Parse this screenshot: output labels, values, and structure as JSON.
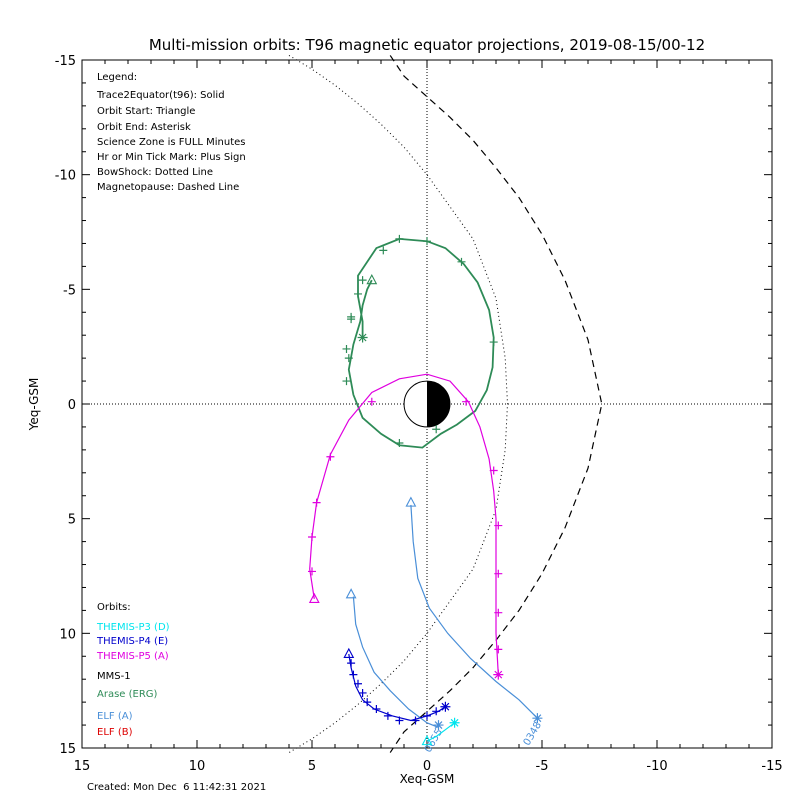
{
  "title": "Multi-mission orbits: T96 magnetic equator projections, 2019-08-15/00-12",
  "footer": "Created: Mon Dec  6 11:42:31 2021",
  "legend": {
    "heading": "Legend:",
    "lines": [
      "Trace2Equator(t96): Solid",
      "Orbit Start: Triangle",
      "Orbit End: Asterisk",
      "Science Zone is FULL Minutes",
      "Hr or Min Tick Mark: Plus Sign",
      "BowShock: Dotted Line",
      "Magnetopause: Dashed Line"
    ]
  },
  "orbits_legend": {
    "heading": "Orbits:",
    "items": [
      {
        "label": "THEMIS-P3 (D)",
        "color": "#00e5ee"
      },
      {
        "label": "THEMIS-P4 (E)",
        "color": "#0000cc"
      },
      {
        "label": "THEMIS-P5 (A)",
        "color": "#e000e0"
      },
      {
        "label": "MMS-1",
        "color": "#000000"
      },
      {
        "label": "Arase (ERG)",
        "color": "#2e8b57"
      },
      {
        "label": "ELF (A)",
        "color": "#4a8fd8"
      },
      {
        "label": "ELF (B)",
        "color": "#dd0000"
      }
    ]
  },
  "chart_data": {
    "type": "line",
    "xlabel": "Xeq-GSM",
    "ylabel": "Yeq-GSM",
    "xlim": [
      15,
      -15
    ],
    "ylim": [
      15,
      -15
    ],
    "xticks": [
      15,
      10,
      5,
      0,
      -5,
      -10,
      -15
    ],
    "yticks": [
      -15,
      -10,
      -5,
      0,
      5,
      10,
      15
    ],
    "boundaries": {
      "magnetopause": [
        [
          1.6,
          -15.2
        ],
        [
          1,
          -14.3
        ],
        [
          0,
          -13.4
        ],
        [
          -1,
          -12.5
        ],
        [
          -2,
          -11.5
        ],
        [
          -3,
          -10.3
        ],
        [
          -4,
          -9
        ],
        [
          -5,
          -7.4
        ],
        [
          -6,
          -5.4
        ],
        [
          -7,
          -2.8
        ],
        [
          -7.6,
          0
        ],
        [
          -7,
          2.8
        ],
        [
          -6,
          5.4
        ],
        [
          -5,
          7.4
        ],
        [
          -4,
          9
        ],
        [
          -3,
          10.3
        ],
        [
          -2,
          11.5
        ],
        [
          -1,
          12.5
        ],
        [
          0,
          13.4
        ],
        [
          1,
          14.3
        ],
        [
          1.6,
          15.2
        ]
      ],
      "bowshock": [
        [
          6,
          -15.2
        ],
        [
          5,
          -14.6
        ],
        [
          4,
          -13.9
        ],
        [
          3,
          -13.1
        ],
        [
          2,
          -12.2
        ],
        [
          1,
          -11.2
        ],
        [
          0,
          -10
        ],
        [
          -2,
          -7.2
        ],
        [
          -3,
          -4.6
        ],
        [
          -3.4,
          -2
        ],
        [
          -3.5,
          0
        ],
        [
          -3.4,
          2
        ],
        [
          -3,
          4.6
        ],
        [
          -2,
          7.2
        ],
        [
          0,
          10
        ],
        [
          1,
          11.2
        ],
        [
          2,
          12.2
        ],
        [
          3,
          13.1
        ],
        [
          4,
          13.9
        ],
        [
          5,
          14.6
        ],
        [
          6,
          15.2
        ]
      ]
    },
    "series": [
      {
        "name": "Arase (ERG)",
        "color": "#2e8b57",
        "points": [
          [
            2.4,
            -5.4
          ],
          [
            2.6,
            -5.0
          ],
          [
            2.8,
            -4.3
          ],
          [
            2.9,
            -3.6
          ],
          [
            3.2,
            -2.6
          ],
          [
            3.4,
            -1.5
          ],
          [
            3.2,
            -0.4
          ],
          [
            2.8,
            0.6
          ],
          [
            2.0,
            1.3
          ],
          [
            1.2,
            1.8
          ],
          [
            0.2,
            1.9
          ],
          [
            -0.6,
            1.3
          ],
          [
            -1.3,
            0.9
          ],
          [
            -2.1,
            0.3
          ],
          [
            -2.6,
            -0.6
          ],
          [
            -2.85,
            -1.6
          ],
          [
            -2.9,
            -2.9
          ],
          [
            -2.7,
            -4.1
          ],
          [
            -2.2,
            -5.3
          ],
          [
            -1.6,
            -6.1
          ],
          [
            -0.8,
            -6.8
          ],
          [
            0,
            -7.1
          ],
          [
            1.2,
            -7.2
          ],
          [
            2.2,
            -6.8
          ],
          [
            3.0,
            -5.6
          ],
          [
            3.0,
            -4.7
          ],
          [
            2.8,
            -3.6
          ],
          [
            2.8,
            -2.9
          ]
        ],
        "ticks": [
          [
            -2.9,
            -2.7
          ],
          [
            -1.5,
            -6.2
          ],
          [
            0,
            -7.1
          ],
          [
            1.2,
            -7.2
          ],
          [
            1.9,
            -6.7
          ],
          [
            3.4,
            -2.0
          ],
          [
            3.5,
            -1.0
          ],
          [
            3.3,
            -3.8
          ],
          [
            3.0,
            -4.8
          ],
          [
            2.8,
            -5.4
          ],
          [
            -0.4,
            1.1
          ],
          [
            1.2,
            1.7
          ],
          [
            3.5,
            -2.4
          ],
          [
            3.3,
            -3.7
          ]
        ]
      },
      {
        "name": "THEMIS-P5 (A)",
        "color": "#e000e0",
        "points": [
          [
            4.9,
            8.5
          ],
          [
            5.1,
            7.2
          ],
          [
            5.0,
            5.8
          ],
          [
            4.8,
            4.3
          ],
          [
            4.2,
            2.2
          ],
          [
            3.4,
            0.7
          ],
          [
            2.4,
            -0.5
          ],
          [
            1.2,
            -1.1
          ],
          [
            0,
            -1.3
          ],
          [
            -1.0,
            -1.0
          ],
          [
            -1.8,
            -0.1
          ],
          [
            -2.3,
            1.0
          ],
          [
            -2.7,
            2.4
          ],
          [
            -2.9,
            3.8
          ],
          [
            -3.0,
            5.0
          ],
          [
            -3.0,
            7.5
          ],
          [
            -3.0,
            10.0
          ],
          [
            -3.1,
            11.8
          ]
        ],
        "ticks": [
          [
            5.0,
            7.3
          ],
          [
            5.0,
            5.8
          ],
          [
            4.8,
            4.3
          ],
          [
            4.2,
            2.3
          ],
          [
            2.4,
            -0.1
          ],
          [
            -1.7,
            -0.1
          ],
          [
            -2.9,
            2.9
          ],
          [
            -3.1,
            5.3
          ],
          [
            -3.1,
            7.4
          ],
          [
            -3.1,
            9.1
          ],
          [
            -3.1,
            10.7
          ]
        ]
      },
      {
        "name": "ELF (A)",
        "color": "#4a8fd8",
        "points": [
          [
            0.7,
            4.4
          ],
          [
            0.6,
            6.0
          ],
          [
            0.4,
            7.6
          ],
          [
            -0.1,
            8.9
          ],
          [
            -0.9,
            10.0
          ],
          [
            -1.9,
            11.1
          ],
          [
            -3.0,
            12.1
          ],
          [
            -4.0,
            12.9
          ],
          [
            -4.8,
            13.7
          ]
        ],
        "label": "0348",
        "start": [
          0.7,
          4.3
        ],
        "end": [
          -4.8,
          13.7
        ]
      },
      {
        "name": "ELF (A)",
        "color": "#4a8fd8",
        "points": [
          [
            3.2,
            8.4
          ],
          [
            3.1,
            9.6
          ],
          [
            2.8,
            10.6
          ],
          [
            2.3,
            11.7
          ],
          [
            1.6,
            12.5
          ],
          [
            0.8,
            13.3
          ],
          [
            0,
            13.9
          ],
          [
            -0.5,
            14.1
          ]
        ],
        "label": "0655",
        "start": [
          3.3,
          8.3
        ],
        "end": [
          -0.5,
          14.0
        ]
      },
      {
        "name": "THEMIS-P4 (E)",
        "color": "#0000cc",
        "points": [
          [
            3.4,
            10.9
          ],
          [
            3.3,
            11.5
          ],
          [
            3.1,
            12.3
          ],
          [
            2.8,
            12.9
          ],
          [
            2.3,
            13.3
          ],
          [
            1.5,
            13.6
          ],
          [
            0.7,
            13.8
          ],
          [
            0,
            13.6
          ],
          [
            -0.5,
            13.4
          ],
          [
            -0.8,
            13.2
          ]
        ],
        "ticks": [
          [
            3.3,
            11.3
          ],
          [
            3.2,
            11.8
          ],
          [
            3.0,
            12.2
          ],
          [
            2.8,
            12.6
          ],
          [
            2.6,
            13.0
          ],
          [
            2.2,
            13.3
          ],
          [
            1.7,
            13.6
          ],
          [
            1.2,
            13.8
          ],
          [
            0.5,
            13.8
          ],
          [
            0,
            13.6
          ],
          [
            -0.4,
            13.4
          ]
        ],
        "start": [
          3.4,
          10.9
        ],
        "end": [
          -0.8,
          13.2
        ]
      },
      {
        "name": "THEMIS-P3 (D)",
        "color": "#00e5ee",
        "points": [
          [
            0,
            14.7
          ],
          [
            -0.4,
            14.5
          ],
          [
            -0.8,
            14.2
          ],
          [
            -1.2,
            13.9
          ]
        ],
        "start": [
          0,
          14.7
        ],
        "end": [
          -1.2,
          13.9
        ]
      }
    ]
  }
}
